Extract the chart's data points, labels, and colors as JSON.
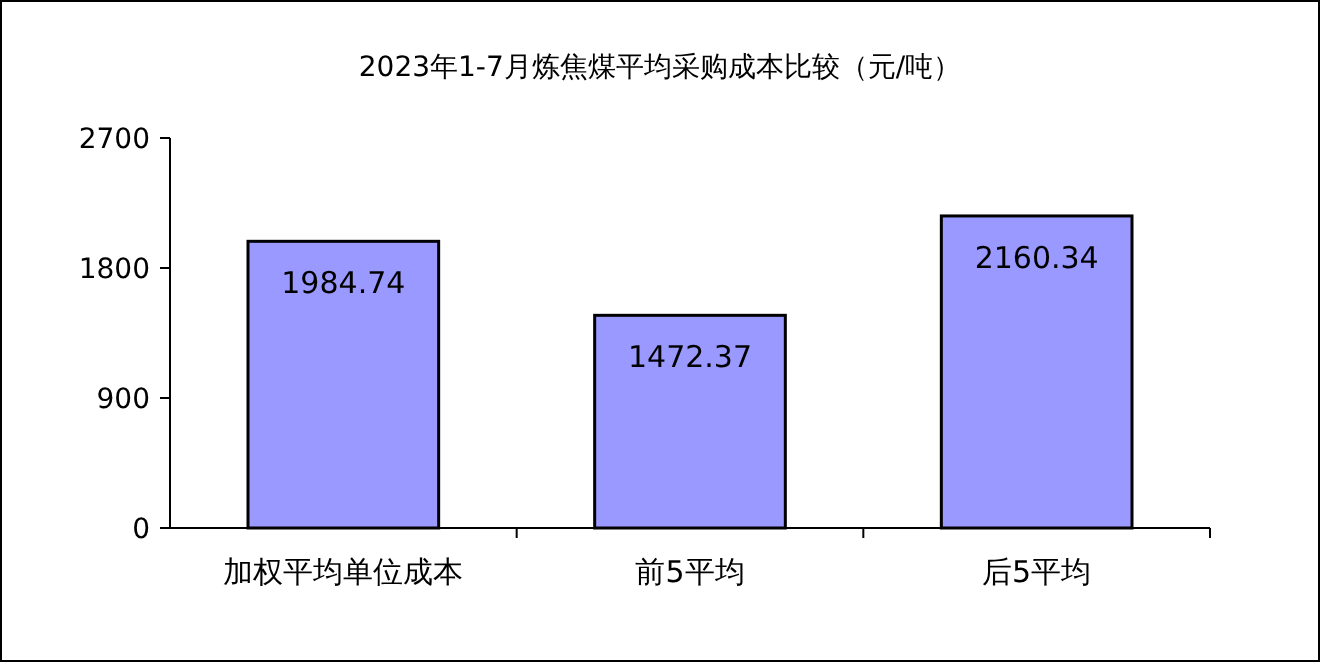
{
  "chart_data": {
    "type": "bar",
    "title": "2023年1-7月炼焦煤平均采购成本比较（元/吨）",
    "categories": [
      "加权平均单位成本",
      "前5平均",
      "后5平均"
    ],
    "values": [
      1984.74,
      1472.37,
      2160.34
    ],
    "color": "#9999ff",
    "ylim": [
      0,
      2700
    ],
    "yticks": [
      0,
      900,
      1800,
      2700
    ],
    "data_labels": true,
    "grid": false
  }
}
